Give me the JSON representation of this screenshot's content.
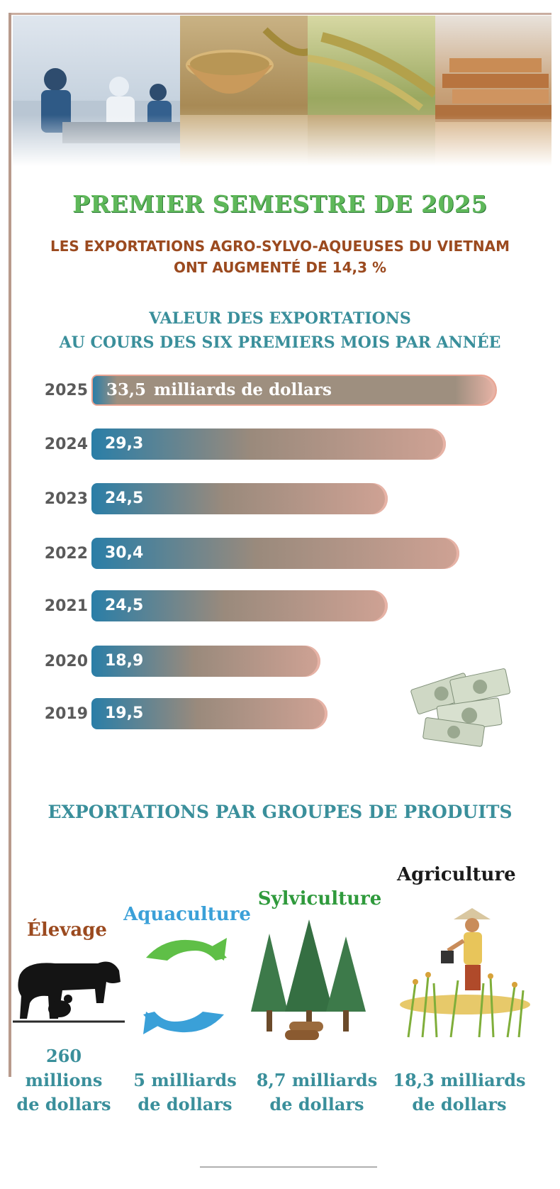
{
  "header": {
    "title": "PREMIER SEMESTRE DE 2025",
    "subtitle_line1": "LES EXPORTATIONS AGRO-SYLVO-AQUEUSES DU VIETNAM",
    "subtitle_line2": "ONT AUGMENTÉ DE 14,3 %"
  },
  "chart_data": {
    "type": "bar",
    "title_line1": "VALEUR DES EXPORTATIONS",
    "title_line2": "AU COURS DES SIX PREMIERS MOIS PAR ANNÉE",
    "orientation": "horizontal",
    "unit_label": "milliards de dollars",
    "categories": [
      "2025",
      "2024",
      "2023",
      "2022",
      "2021",
      "2020",
      "2019"
    ],
    "values": [
      33.5,
      29.3,
      24.5,
      30.4,
      24.5,
      18.9,
      19.5
    ],
    "value_labels": [
      "33,5",
      "29,3",
      "24,5",
      "30,4",
      "24,5",
      "18,9",
      "19,5"
    ],
    "colors": {
      "start": "#2a7ea7",
      "end": "#cfa294"
    }
  },
  "groups": {
    "title": "EXPORTATIONS PAR GROUPES DE PRODUITS",
    "items": [
      {
        "name": "Élevage",
        "value_lines": [
          "260",
          "millions",
          "de dollars"
        ],
        "color": "#9b4a1f",
        "icon": "livestock-icon"
      },
      {
        "name": "Aquaculture",
        "value_lines": [
          "5 milliards",
          "de dollars"
        ],
        "color": "#3aa0d8",
        "icon": "fish-icon"
      },
      {
        "name": "Sylviculture",
        "value_lines": [
          "8,7 milliards",
          "de dollars"
        ],
        "color": "#2f9a3c",
        "icon": "forest-icon"
      },
      {
        "name": "Agriculture",
        "value_lines": [
          "18,3 milliards",
          "de dollars"
        ],
        "color": "#1a1a1a",
        "icon": "farmer-icon"
      }
    ]
  }
}
